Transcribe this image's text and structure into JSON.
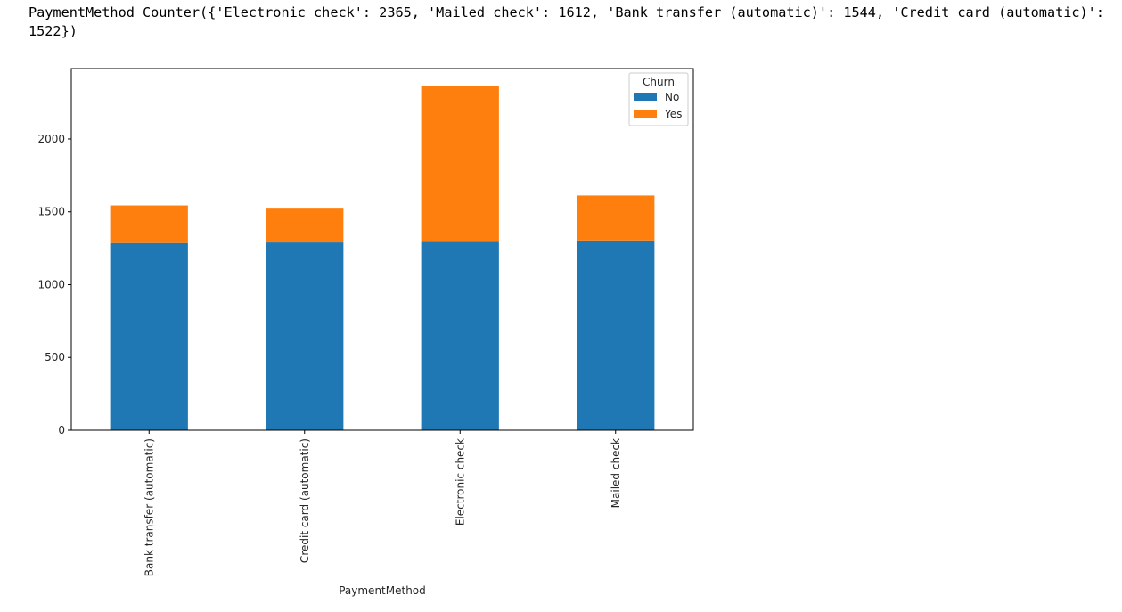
{
  "output": {
    "text": "PaymentMethod Counter({'Electronic check': 2365, 'Mailed check': 1612, 'Bank transfer (automatic)': 1544, 'Credit card (automatic)': 1522})"
  },
  "chart_data": {
    "type": "bar",
    "stacked": true,
    "categories": [
      "Bank transfer (automatic)",
      "Credit card (automatic)",
      "Electronic check",
      "Mailed check"
    ],
    "series": [
      {
        "name": "No",
        "values": [
          1286,
          1290,
          1294,
          1304
        ],
        "color": "#1f77b4"
      },
      {
        "name": "Yes",
        "values": [
          258,
          232,
          1071,
          308
        ],
        "color": "#ff7f0e"
      }
    ],
    "title": "",
    "xlabel": "PaymentMethod",
    "ylabel": "",
    "ylim": [
      0,
      2483
    ],
    "yticks": [
      0,
      500,
      1000,
      1500,
      2000
    ],
    "legend_title": "Churn",
    "legend_position": "top-right",
    "grid": false
  }
}
